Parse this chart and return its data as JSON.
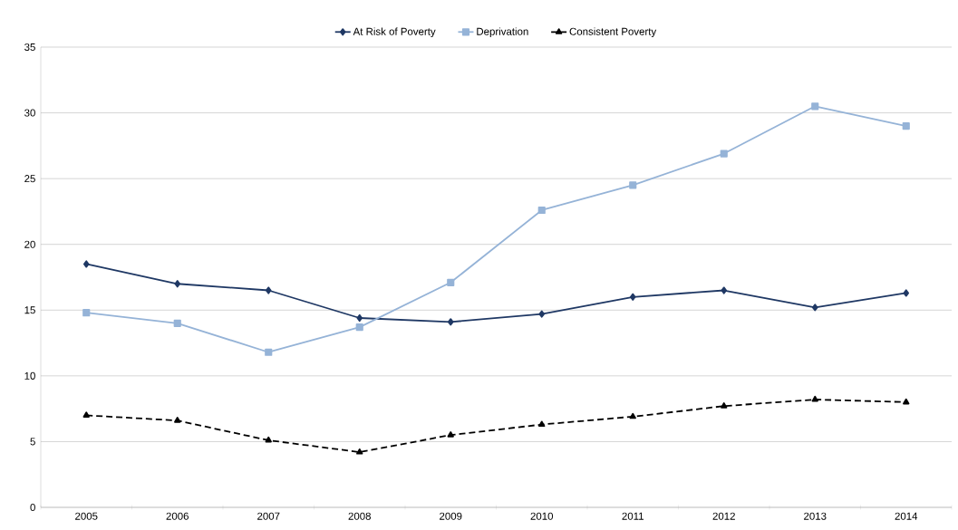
{
  "chart_data": {
    "type": "line",
    "categories": [
      "2005",
      "2006",
      "2007",
      "2008",
      "2009",
      "2010",
      "2011",
      "2012",
      "2013",
      "2014"
    ],
    "series": [
      {
        "name": "At Risk of Poverty",
        "color": "#1f3864",
        "marker": "diamond",
        "line_style": "solid",
        "values": [
          18.5,
          17.0,
          16.5,
          14.4,
          14.1,
          14.7,
          16.0,
          16.5,
          15.2,
          16.3
        ]
      },
      {
        "name": "Deprivation",
        "color": "#95b3d7",
        "marker": "square",
        "line_style": "solid",
        "values": [
          14.8,
          14.0,
          11.8,
          13.7,
          17.1,
          22.6,
          24.5,
          26.9,
          30.5,
          29.0
        ]
      },
      {
        "name": "Consistent Poverty",
        "color": "#000000",
        "marker": "triangle",
        "line_style": "dashed",
        "values": [
          7.0,
          6.6,
          5.1,
          4.2,
          5.5,
          6.3,
          6.9,
          7.7,
          8.2,
          8.0
        ]
      }
    ],
    "ylim": [
      0,
      35
    ],
    "yticks": [
      0,
      5,
      10,
      15,
      20,
      25,
      30,
      35
    ],
    "grid": "y",
    "legend": "top"
  }
}
